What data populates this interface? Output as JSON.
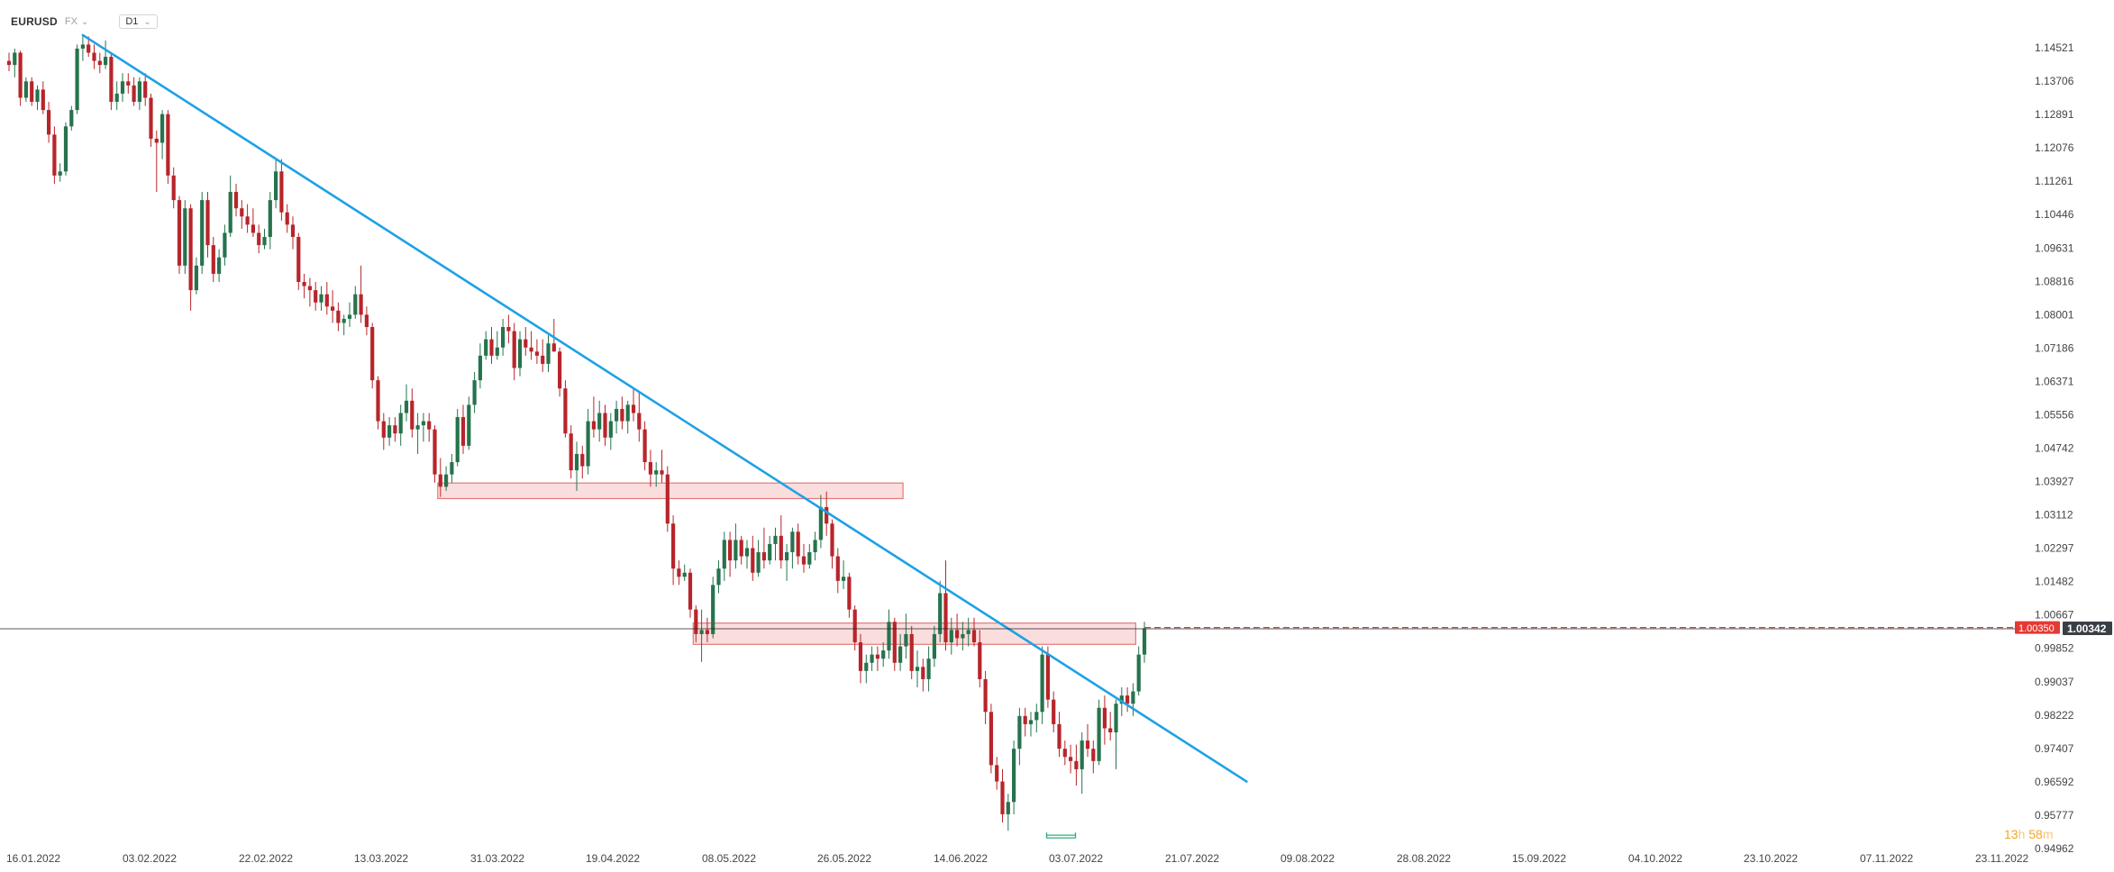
{
  "header": {
    "symbol": "EURUSD",
    "market": "FX",
    "timeframe": "D1"
  },
  "countdown": {
    "hours": "13",
    "h_unit": "h",
    "minutes": "58",
    "m_unit": "m"
  },
  "colors": {
    "up": "#26734d",
    "down": "#b7252b",
    "trendline": "#1ea1e6",
    "zone_fill": "#f8d2d2",
    "zone_stroke": "#e07a7a",
    "price_line": "#222222",
    "bid_dash": "#e53935"
  },
  "chart_data": {
    "type": "candlestick",
    "instrument": "EURUSD",
    "timeframe": "D1",
    "ylim": [
      0.94962,
      1.15336
    ],
    "y_ticks": [
      "1.14521",
      "1.13706",
      "1.12891",
      "1.12076",
      "1.11261",
      "1.10446",
      "1.09631",
      "1.08816",
      "1.08001",
      "1.07186",
      "1.06371",
      "1.05556",
      "1.04742",
      "1.03927",
      "1.03112",
      "1.02297",
      "1.01482",
      "1.00667",
      "0.99852",
      "0.99037",
      "0.98222",
      "0.97407",
      "0.96592",
      "0.95777",
      "0.94962"
    ],
    "x_ticks": [
      "16.01.2022",
      "03.02.2022",
      "22.02.2022",
      "13.03.2022",
      "31.03.2022",
      "19.04.2022",
      "08.05.2022",
      "26.05.2022",
      "14.06.2022",
      "03.07.2022",
      "21.07.2022",
      "09.08.2022",
      "28.08.2022",
      "15.09.2022",
      "04.10.2022",
      "23.10.2022",
      "07.11.2022",
      "23.11.2022"
    ],
    "current_price": "1.00342",
    "bid_price": "1.00350",
    "candles": [
      [
        1.142,
        1.144,
        1.1395,
        1.141
      ],
      [
        1.141,
        1.145,
        1.138,
        1.144
      ],
      [
        1.144,
        1.1445,
        1.131,
        1.133
      ],
      [
        1.133,
        1.138,
        1.132,
        1.137
      ],
      [
        1.137,
        1.138,
        1.131,
        1.132
      ],
      [
        1.132,
        1.136,
        1.13,
        1.135
      ],
      [
        1.135,
        1.137,
        1.129,
        1.13
      ],
      [
        1.13,
        1.132,
        1.122,
        1.124
      ],
      [
        1.124,
        1.126,
        1.112,
        1.114
      ],
      [
        1.114,
        1.117,
        1.1125,
        1.115
      ],
      [
        1.115,
        1.127,
        1.114,
        1.126
      ],
      [
        1.126,
        1.131,
        1.125,
        1.13
      ],
      [
        1.13,
        1.146,
        1.129,
        1.145
      ],
      [
        1.145,
        1.1483,
        1.142,
        1.146
      ],
      [
        1.146,
        1.148,
        1.143,
        1.144
      ],
      [
        1.144,
        1.146,
        1.14,
        1.142
      ],
      [
        1.142,
        1.144,
        1.139,
        1.141
      ],
      [
        1.141,
        1.147,
        1.14,
        1.143
      ],
      [
        1.143,
        1.144,
        1.13,
        1.132
      ],
      [
        1.132,
        1.137,
        1.13,
        1.134
      ],
      [
        1.134,
        1.139,
        1.132,
        1.137
      ],
      [
        1.137,
        1.139,
        1.134,
        1.136
      ],
      [
        1.136,
        1.138,
        1.131,
        1.132
      ],
      [
        1.132,
        1.138,
        1.13,
        1.137
      ],
      [
        1.137,
        1.139,
        1.131,
        1.133
      ],
      [
        1.133,
        1.134,
        1.121,
        1.123
      ],
      [
        1.123,
        1.125,
        1.11,
        1.122
      ],
      [
        1.122,
        1.13,
        1.118,
        1.129
      ],
      [
        1.129,
        1.13,
        1.112,
        1.114
      ],
      [
        1.114,
        1.116,
        1.106,
        1.108
      ],
      [
        1.108,
        1.109,
        1.09,
        1.092
      ],
      [
        1.092,
        1.108,
        1.09,
        1.106
      ],
      [
        1.106,
        1.107,
        1.081,
        1.086
      ],
      [
        1.086,
        1.094,
        1.085,
        1.092
      ],
      [
        1.092,
        1.11,
        1.09,
        1.108
      ],
      [
        1.108,
        1.11,
        1.094,
        1.097
      ],
      [
        1.097,
        1.099,
        1.088,
        1.09
      ],
      [
        1.09,
        1.096,
        1.088,
        1.094
      ],
      [
        1.094,
        1.102,
        1.092,
        1.1
      ],
      [
        1.1,
        1.114,
        1.099,
        1.11
      ],
      [
        1.11,
        1.112,
        1.104,
        1.106
      ],
      [
        1.106,
        1.108,
        1.101,
        1.104
      ],
      [
        1.104,
        1.107,
        1.1,
        1.102
      ],
      [
        1.102,
        1.106,
        1.099,
        1.1
      ],
      [
        1.1,
        1.102,
        1.095,
        1.097
      ],
      [
        1.097,
        1.101,
        1.096,
        1.099
      ],
      [
        1.099,
        1.11,
        1.096,
        1.108
      ],
      [
        1.108,
        1.118,
        1.106,
        1.115
      ],
      [
        1.115,
        1.118,
        1.103,
        1.105
      ],
      [
        1.105,
        1.107,
        1.1,
        1.102
      ],
      [
        1.102,
        1.104,
        1.096,
        1.099
      ],
      [
        1.099,
        1.1,
        1.086,
        1.088
      ],
      [
        1.088,
        1.09,
        1.084,
        1.087
      ],
      [
        1.087,
        1.089,
        1.082,
        1.086
      ],
      [
        1.086,
        1.088,
        1.081,
        1.083
      ],
      [
        1.083,
        1.087,
        1.081,
        1.085
      ],
      [
        1.085,
        1.088,
        1.08,
        1.082
      ],
      [
        1.082,
        1.086,
        1.078,
        1.081
      ],
      [
        1.081,
        1.083,
        1.076,
        1.078
      ],
      [
        1.078,
        1.08,
        1.075,
        1.079
      ],
      [
        1.079,
        1.083,
        1.077,
        1.08
      ],
      [
        1.08,
        1.087,
        1.079,
        1.085
      ],
      [
        1.085,
        1.092,
        1.078,
        1.08
      ],
      [
        1.08,
        1.082,
        1.075,
        1.077
      ],
      [
        1.077,
        1.078,
        1.062,
        1.064
      ],
      [
        1.064,
        1.065,
        1.052,
        1.054
      ],
      [
        1.054,
        1.056,
        1.047,
        1.05
      ],
      [
        1.05,
        1.055,
        1.048,
        1.053
      ],
      [
        1.053,
        1.055,
        1.049,
        1.051
      ],
      [
        1.051,
        1.058,
        1.048,
        1.056
      ],
      [
        1.056,
        1.063,
        1.054,
        1.059
      ],
      [
        1.059,
        1.062,
        1.05,
        1.052
      ],
      [
        1.052,
        1.056,
        1.046,
        1.053
      ],
      [
        1.053,
        1.056,
        1.049,
        1.054
      ],
      [
        1.054,
        1.056,
        1.049,
        1.052
      ],
      [
        1.052,
        1.053,
        1.039,
        1.041
      ],
      [
        1.041,
        1.045,
        1.0355,
        1.038
      ],
      [
        1.038,
        1.043,
        1.037,
        1.041
      ],
      [
        1.041,
        1.046,
        1.039,
        1.044
      ],
      [
        1.044,
        1.057,
        1.043,
        1.055
      ],
      [
        1.055,
        1.058,
        1.046,
        1.048
      ],
      [
        1.048,
        1.06,
        1.047,
        1.058
      ],
      [
        1.058,
        1.066,
        1.056,
        1.064
      ],
      [
        1.064,
        1.073,
        1.062,
        1.07
      ],
      [
        1.07,
        1.076,
        1.069,
        1.074
      ],
      [
        1.074,
        1.077,
        1.068,
        1.07
      ],
      [
        1.07,
        1.076,
        1.069,
        1.072
      ],
      [
        1.072,
        1.079,
        1.07,
        1.077
      ],
      [
        1.077,
        1.08,
        1.073,
        1.076
      ],
      [
        1.076,
        1.078,
        1.064,
        1.067
      ],
      [
        1.067,
        1.076,
        1.065,
        1.074
      ],
      [
        1.074,
        1.077,
        1.07,
        1.072
      ],
      [
        1.072,
        1.076,
        1.069,
        1.071
      ],
      [
        1.071,
        1.074,
        1.068,
        1.07
      ],
      [
        1.07,
        1.074,
        1.066,
        1.068
      ],
      [
        1.068,
        1.075,
        1.066,
        1.073
      ],
      [
        1.073,
        1.079,
        1.071,
        1.071
      ],
      [
        1.071,
        1.072,
        1.06,
        1.062
      ],
      [
        1.062,
        1.064,
        1.05,
        1.051
      ],
      [
        1.051,
        1.053,
        1.04,
        1.042
      ],
      [
        1.042,
        1.049,
        1.037,
        1.046
      ],
      [
        1.046,
        1.048,
        1.04,
        1.043
      ],
      [
        1.043,
        1.057,
        1.041,
        1.054
      ],
      [
        1.054,
        1.06,
        1.05,
        1.052
      ],
      [
        1.052,
        1.059,
        1.049,
        1.056
      ],
      [
        1.056,
        1.058,
        1.048,
        1.05
      ],
      [
        1.05,
        1.056,
        1.047,
        1.054
      ],
      [
        1.054,
        1.059,
        1.051,
        1.057
      ],
      [
        1.057,
        1.06,
        1.052,
        1.054
      ],
      [
        1.054,
        1.059,
        1.051,
        1.058
      ],
      [
        1.058,
        1.062,
        1.054,
        1.056
      ],
      [
        1.056,
        1.061,
        1.049,
        1.052
      ],
      [
        1.052,
        1.054,
        1.042,
        1.044
      ],
      [
        1.044,
        1.047,
        1.038,
        1.041
      ],
      [
        1.041,
        1.044,
        1.038,
        1.042
      ],
      [
        1.042,
        1.047,
        1.039,
        1.041
      ],
      [
        1.041,
        1.043,
        1.027,
        1.029
      ],
      [
        1.029,
        1.031,
        1.014,
        1.018
      ],
      [
        1.018,
        1.02,
        1.014,
        1.016
      ],
      [
        1.016,
        1.019,
        1.015,
        1.017
      ],
      [
        1.017,
        1.018,
        1.006,
        1.008
      ],
      [
        1.008,
        1.009,
        1.0,
        1.002
      ],
      [
        1.002,
        1.008,
        0.9952,
        1.003
      ],
      [
        1.003,
        1.006,
        1.0,
        1.002
      ],
      [
        1.002,
        1.016,
        1.001,
        1.014
      ],
      [
        1.014,
        1.02,
        1.012,
        1.018
      ],
      [
        1.018,
        1.027,
        1.015,
        1.025
      ],
      [
        1.025,
        1.027,
        1.016,
        1.02
      ],
      [
        1.02,
        1.029,
        1.018,
        1.025
      ],
      [
        1.025,
        1.026,
        1.019,
        1.021
      ],
      [
        1.021,
        1.025,
        1.018,
        1.023
      ],
      [
        1.023,
        1.026,
        1.015,
        1.017
      ],
      [
        1.017,
        1.025,
        1.016,
        1.022
      ],
      [
        1.022,
        1.028,
        1.018,
        1.02
      ],
      [
        1.02,
        1.026,
        1.019,
        1.024
      ],
      [
        1.024,
        1.028,
        1.02,
        1.026
      ],
      [
        1.026,
        1.031,
        1.018,
        1.02
      ],
      [
        1.02,
        1.024,
        1.015,
        1.022
      ],
      [
        1.022,
        1.028,
        1.018,
        1.027
      ],
      [
        1.027,
        1.029,
        1.019,
        1.021
      ],
      [
        1.021,
        1.024,
        1.017,
        1.019
      ],
      [
        1.019,
        1.024,
        1.018,
        1.022
      ],
      [
        1.022,
        1.027,
        1.02,
        1.025
      ],
      [
        1.025,
        1.036,
        1.023,
        1.033
      ],
      [
        1.033,
        1.0368,
        1.026,
        1.029
      ],
      [
        1.029,
        1.03,
        1.018,
        1.021
      ],
      [
        1.021,
        1.023,
        1.012,
        1.015
      ],
      [
        1.015,
        1.02,
        1.013,
        1.016
      ],
      [
        1.016,
        1.017,
        1.006,
        1.008
      ],
      [
        1.008,
        1.009,
        0.998,
        1.0
      ],
      [
        1.0,
        1.002,
        0.99,
        0.993
      ],
      [
        0.993,
        0.997,
        0.99,
        0.995
      ],
      [
        0.995,
        0.999,
        0.993,
        0.997
      ],
      [
        0.997,
        0.999,
        0.993,
        0.996
      ],
      [
        0.996,
        1.0,
        0.994,
        0.998
      ],
      [
        0.998,
        1.008,
        0.996,
        1.005
      ],
      [
        1.005,
        1.006,
        0.993,
        0.995
      ],
      [
        0.995,
        1.002,
        0.993,
        0.999
      ],
      [
        0.999,
        1.007,
        0.996,
        1.002
      ],
      [
        1.002,
        1.004,
        0.991,
        0.993
      ],
      [
        0.993,
        0.998,
        0.989,
        0.994
      ],
      [
        0.994,
        0.996,
        0.988,
        0.991
      ],
      [
        0.991,
        0.999,
        0.988,
        0.996
      ],
      [
        0.996,
        1.004,
        0.994,
        1.002
      ],
      [
        1.002,
        1.015,
        1.0,
        1.012
      ],
      [
        1.012,
        1.02,
        0.998,
        1.0
      ],
      [
        1.0,
        1.006,
        0.997,
        1.003
      ],
      [
        1.003,
        1.007,
        0.999,
        1.001
      ],
      [
        1.001,
        1.005,
        0.998,
        1.002
      ],
      [
        1.002,
        1.006,
        0.999,
        1.003
      ],
      [
        1.003,
        1.006,
        0.999,
        1.0
      ],
      [
        1.0,
        1.003,
        0.989,
        0.991
      ],
      [
        0.991,
        0.993,
        0.98,
        0.983
      ],
      [
        0.983,
        0.985,
        0.968,
        0.97
      ],
      [
        0.97,
        0.972,
        0.964,
        0.966
      ],
      [
        0.966,
        0.969,
        0.956,
        0.958
      ],
      [
        0.958,
        0.963,
        0.954,
        0.961
      ],
      [
        0.961,
        0.976,
        0.958,
        0.974
      ],
      [
        0.974,
        0.984,
        0.97,
        0.982
      ],
      [
        0.982,
        0.984,
        0.977,
        0.98
      ],
      [
        0.98,
        0.983,
        0.977,
        0.981
      ],
      [
        0.981,
        0.985,
        0.978,
        0.983
      ],
      [
        0.983,
        0.999,
        0.98,
        0.997
      ],
      [
        0.997,
        0.999,
        0.984,
        0.986
      ],
      [
        0.986,
        0.988,
        0.978,
        0.98
      ],
      [
        0.98,
        0.983,
        0.972,
        0.974
      ],
      [
        0.974,
        0.976,
        0.97,
        0.972
      ],
      [
        0.972,
        0.975,
        0.968,
        0.971
      ],
      [
        0.971,
        0.975,
        0.965,
        0.969
      ],
      [
        0.969,
        0.978,
        0.963,
        0.976
      ],
      [
        0.976,
        0.98,
        0.972,
        0.974
      ],
      [
        0.974,
        0.976,
        0.968,
        0.971
      ],
      [
        0.971,
        0.986,
        0.97,
        0.984
      ],
      [
        0.984,
        0.987,
        0.975,
        0.979
      ],
      [
        0.979,
        0.983,
        0.976,
        0.978
      ],
      [
        0.978,
        0.986,
        0.969,
        0.985
      ],
      [
        0.985,
        0.989,
        0.982,
        0.987
      ],
      [
        0.987,
        0.989,
        0.983,
        0.985
      ],
      [
        0.985,
        0.99,
        0.982,
        0.988
      ],
      [
        0.988,
        0.999,
        0.987,
        0.997
      ],
      [
        0.997,
        1.005,
        0.995,
        1.0034
      ]
    ],
    "trendline": {
      "start": {
        "candle": 13,
        "price": 1.1483
      },
      "end": {
        "candle": 218,
        "price": 0.966
      }
    },
    "zones": [
      {
        "from_candle": 76,
        "to_candle": 157,
        "low": 1.0362,
        "high": 1.0378
      },
      {
        "from_candle": 121,
        "to_candle": 198,
        "low": 1.0006,
        "high": 1.0036
      }
    ],
    "grid": false,
    "legend": "none"
  }
}
